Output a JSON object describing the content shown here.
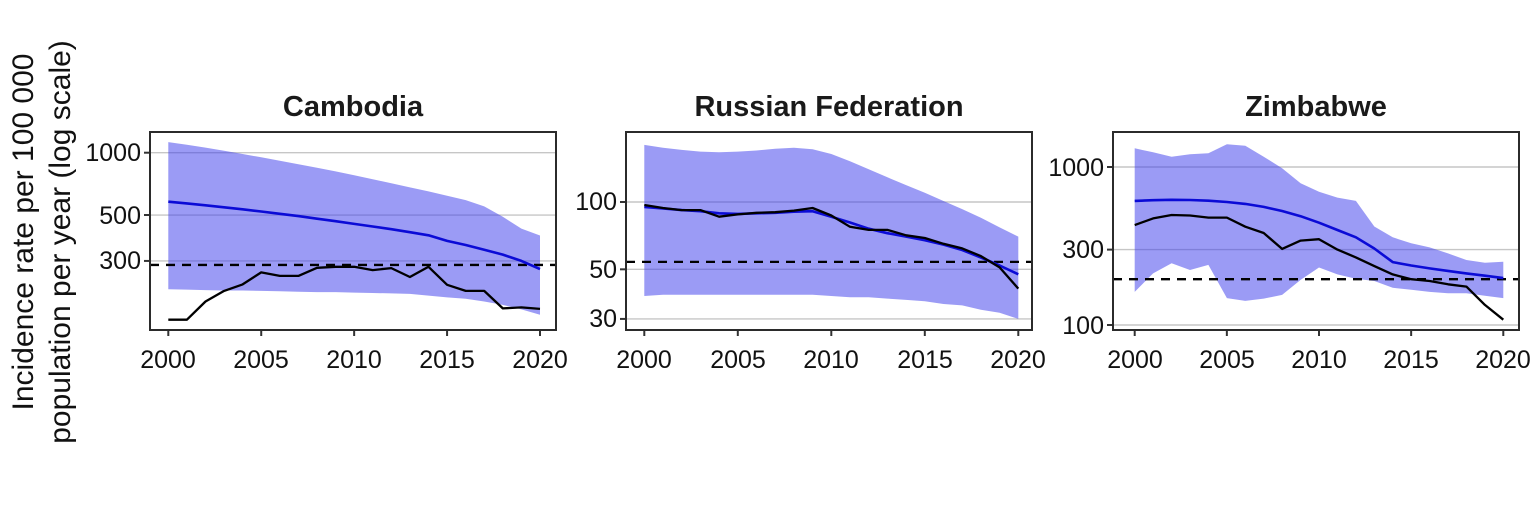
{
  "figure": {
    "y_axis_title_line1": "Incidence rate per 100 000",
    "y_axis_title_line2": "population per year (log scale)"
  },
  "colors": {
    "estimate_line": "#0b0bd6",
    "notification_line": "#000000",
    "uncertainty_band": "rgba(55,55,235,0.5)",
    "dashed_reference": "#000000",
    "gridline": "#c6c6c6",
    "plot_border": "#2b2b2b",
    "tick_mark": "#333333"
  },
  "chart_data": {
    "type": "line",
    "x_label": "",
    "y_label": "Incidence rate per 100 000 population per year (log scale)",
    "x": [
      2000,
      2001,
      2002,
      2003,
      2004,
      2005,
      2006,
      2007,
      2008,
      2009,
      2010,
      2011,
      2012,
      2013,
      2014,
      2015,
      2016,
      2017,
      2018,
      2019,
      2020
    ],
    "x_ticks": [
      2000,
      2005,
      2010,
      2015,
      2020
    ],
    "x_tick_labels": [
      "2000",
      "2005",
      "2010",
      "2015",
      "2020"
    ],
    "grid": "horizontal-only",
    "legend": "none",
    "panels": [
      {
        "title": "Cambodia",
        "y_scale": "log",
        "ylim": [
          139,
          1259
        ],
        "y_ticks": [
          {
            "value": 1000,
            "label": "1000"
          },
          {
            "value": 500,
            "label": "500"
          },
          {
            "value": 300,
            "label": "300"
          }
        ],
        "dashed_reference_value": 287,
        "band": {
          "name": "uncertainty-interval",
          "hi": [
            1125,
            1092,
            1058,
            1022,
            986,
            950,
            915,
            880,
            846,
            812,
            778,
            745,
            712,
            680,
            650,
            620,
            590,
            550,
            490,
            430,
            398
          ],
          "lo": [
            219,
            218,
            217,
            216,
            216,
            215,
            214,
            213,
            212,
            212,
            211,
            210,
            209,
            208,
            204,
            200,
            197,
            191,
            184,
            175,
            165
          ]
        },
        "series": [
          {
            "name": "estimated-incidence",
            "color": "#0b0bd6",
            "width": 2.6,
            "values": [
              580,
              569,
              557,
              545,
              533,
              520,
              507,
              494,
              480,
              467,
              453,
              440,
              427,
              413,
              399,
              375,
              358,
              340,
              322,
              300,
              274
            ]
          },
          {
            "name": "notification-rate",
            "color": "#000000",
            "width": 2.3,
            "values": [
              156,
              156,
              191,
              215,
              231,
              264,
              254,
              254,
              278,
              281,
              281,
              271,
              277,
              251,
              281,
              230,
              215,
              215,
              177,
              179,
              176
            ]
          }
        ]
      },
      {
        "title": "Russian Federation",
        "y_scale": "log",
        "ylim": [
          26.8,
          206
        ],
        "y_ticks": [
          {
            "value": 100,
            "label": "100"
          },
          {
            "value": 50,
            "label": "50"
          },
          {
            "value": 30,
            "label": "30"
          }
        ],
        "dashed_reference_value": 54,
        "band": {
          "name": "uncertainty-interval",
          "hi": [
            180,
            175,
            171,
            168,
            167,
            168,
            170,
            173,
            175,
            172,
            164,
            152,
            140,
            129,
            119,
            110,
            101,
            93,
            85,
            77,
            70
          ],
          "lo": [
            38,
            38.5,
            38.5,
            38.5,
            38.5,
            38.5,
            38.5,
            38.5,
            38.5,
            38.5,
            38,
            37.5,
            37.5,
            37,
            36.5,
            36,
            35,
            34.5,
            33,
            32,
            30
          ]
        },
        "series": [
          {
            "name": "estimated-incidence",
            "color": "#0b0bd6",
            "width": 2.6,
            "values": [
              95,
              93.5,
              92,
              91,
              89,
              88.5,
              89,
              89.5,
              90.5,
              91,
              86,
              81,
              76,
              72.5,
              70,
              67.5,
              64.5,
              61,
              56.5,
              52,
              47.5
            ]
          },
          {
            "name": "notification-rate",
            "color": "#000000",
            "width": 2.3,
            "values": [
              97,
              94,
              92,
              92,
              86,
              88,
              89.5,
              90,
              91.5,
              94,
              87,
              77.5,
              75,
              75,
              71,
              69,
              65,
              62,
              57.3,
              51,
              41
            ]
          }
        ]
      },
      {
        "title": "Zimbabwe",
        "y_scale": "log",
        "ylim": [
          93,
          1666
        ],
        "y_ticks": [
          {
            "value": 1000,
            "label": "1000"
          },
          {
            "value": 300,
            "label": "300"
          },
          {
            "value": 100,
            "label": "100"
          }
        ],
        "dashed_reference_value": 195,
        "band": {
          "name": "uncertainty-interval",
          "hi": [
            1313,
            1239,
            1162,
            1203,
            1222,
            1392,
            1364,
            1162,
            981,
            789,
            698,
            640,
            610,
            420,
            359,
            329,
            310,
            284,
            258,
            248,
            251
          ],
          "lo": [
            162,
            212,
            246,
            223,
            240,
            148,
            142,
            147,
            155,
            193,
            231,
            209,
            196,
            190,
            172,
            167,
            162,
            159,
            159,
            153,
            148
          ]
        },
        "series": [
          {
            "name": "estimated-incidence",
            "color": "#0b0bd6",
            "width": 2.6,
            "values": [
              610,
              616,
              620,
              618,
              612,
              600,
              584,
              559,
              527,
              488,
              444,
              399,
              359,
              305,
              250,
              238,
              228,
              220,
              212,
              205,
              198
            ]
          },
          {
            "name": "notification-rate",
            "color": "#000000",
            "width": 2.3,
            "values": [
              429,
              473,
              497,
              493,
              478,
              478,
              419,
              382,
              303,
              342,
              349,
              300,
              268,
              236,
              209,
              195,
              190,
              181,
              175,
              134,
              108
            ]
          }
        ]
      }
    ]
  }
}
